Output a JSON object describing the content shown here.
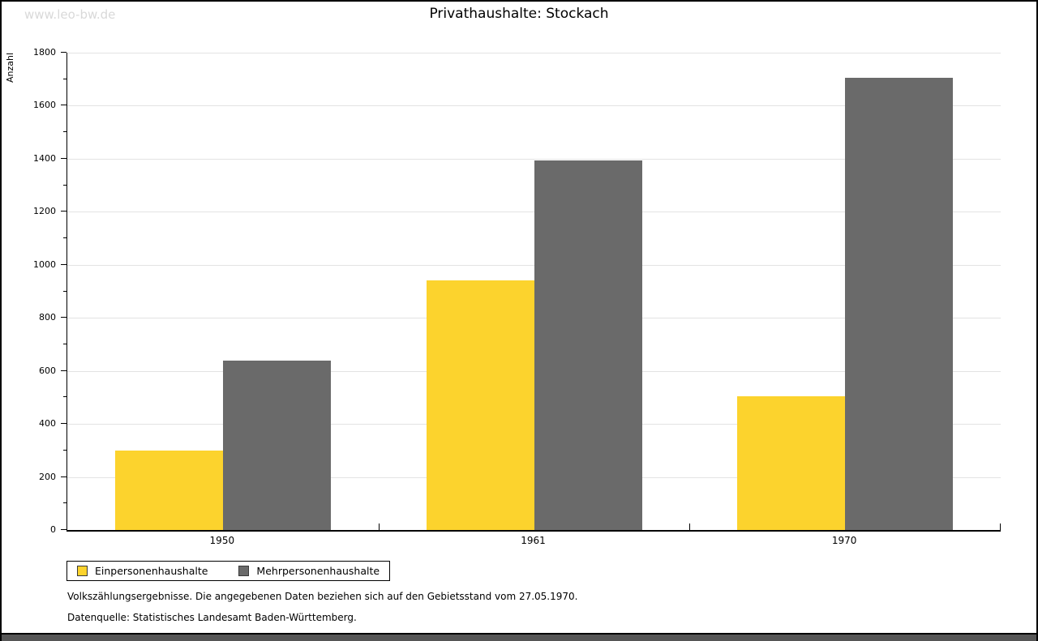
{
  "watermark": "www.leo-bw.de",
  "title": "Privathaushalte: Stockach",
  "footer": {
    "line1": "Volkszählungsergebnisse. Die angegebenen Daten beziehen sich auf den Gebietsstand vom 27.05.1970.",
    "line2": "Datenquelle: Statistisches Landesamt Baden-Württemberg."
  },
  "colors": {
    "series1": "#FCD32D",
    "series2": "#6A6A6A",
    "gridline": "#E3E3E3",
    "axis": "#000000",
    "watermark_text": "#D9D9D9",
    "bottom_bar": "#565656"
  },
  "chart_data": {
    "type": "bar",
    "title": "Privathaushalte: Stockach",
    "xlabel": "",
    "ylabel": "Anzahl",
    "categories": [
      "1950",
      "1961",
      "1970"
    ],
    "series": [
      {
        "name": "Einpersonenhaushalte",
        "color": "#FCD32D",
        "values": [
          300,
          940,
          505
        ]
      },
      {
        "name": "Mehrpersonenhaushalte",
        "color": "#6A6A6A",
        "values": [
          640,
          1395,
          1705
        ]
      }
    ],
    "ylim": [
      0,
      1800
    ],
    "y_major_step": 200,
    "y_minor_step": 100,
    "grid": true,
    "legend_position": "bottom-left"
  }
}
